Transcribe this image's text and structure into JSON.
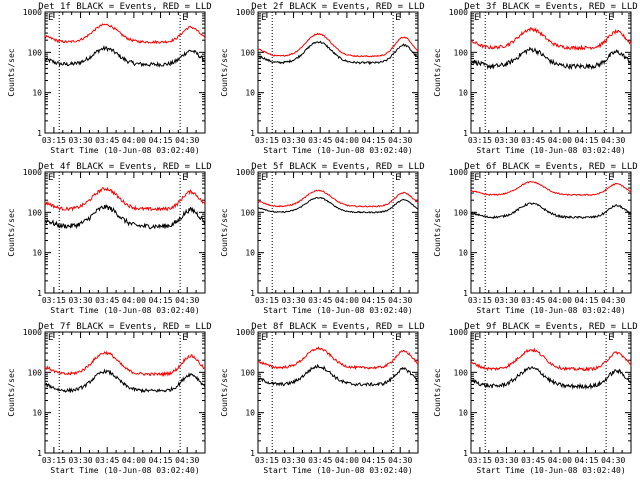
{
  "chart_data": [
    {
      "type": "line",
      "title": "Det 1f BLACK = Events, RED = LLD",
      "xlabel": "Start Time (10-Jun-08 03:02:40)",
      "ylabel": "Counts/sec",
      "yscale": "log",
      "ylim": [
        1,
        1000
      ],
      "xtick_labels": [
        "03:15",
        "03:30",
        "03:45",
        "04:00",
        "04:15",
        "04:30"
      ],
      "ytick_labels": [
        "1",
        "10",
        "100",
        "1000"
      ],
      "series": [
        {
          "color": "#000000",
          "base": 50,
          "amp": 2.5,
          "noise": 0.1
        },
        {
          "color": "#ff0000",
          "base": 180,
          "amp": 2.7,
          "noise": 0.06
        }
      ]
    },
    {
      "type": "line",
      "title": "Det 2f BLACK = Events, RED = LLD",
      "xlabel": "Start Time (10-Jun-08 03:02:40)",
      "ylabel": "Counts/sec",
      "yscale": "log",
      "ylim": [
        1,
        1000
      ],
      "xtick_labels": [
        "03:15",
        "03:30",
        "03:45",
        "04:00",
        "04:15",
        "04:30"
      ],
      "ytick_labels": [
        "1",
        "10",
        "100",
        "1000"
      ],
      "series": [
        {
          "color": "#000000",
          "base": 55,
          "amp": 3.3,
          "noise": 0.05
        },
        {
          "color": "#ff0000",
          "base": 80,
          "amp": 3.6,
          "noise": 0.03
        }
      ]
    },
    {
      "type": "line",
      "title": "Det 3f BLACK = Events, RED = LLD",
      "xlabel": "Start Time (10-Jun-08 03:02:40)",
      "ylabel": "Counts/sec",
      "yscale": "log",
      "ylim": [
        1,
        1000
      ],
      "xtick_labels": [
        "03:15",
        "03:30",
        "03:45",
        "04:00",
        "04:15",
        "04:30"
      ],
      "ytick_labels": [
        "1",
        "10",
        "100",
        "1000"
      ],
      "series": [
        {
          "color": "#000000",
          "base": 45,
          "amp": 2.6,
          "noise": 0.12
        },
        {
          "color": "#ff0000",
          "base": 130,
          "amp": 2.9,
          "noise": 0.08
        }
      ]
    },
    {
      "type": "line",
      "title": "Det 4f BLACK = Events, RED = LLD",
      "xlabel": "Start Time (10-Jun-08 03:02:40)",
      "ylabel": "Counts/sec",
      "yscale": "log",
      "ylim": [
        1,
        1000
      ],
      "xtick_labels": [
        "03:15",
        "03:30",
        "03:45",
        "04:00",
        "04:15",
        "04:30"
      ],
      "ytick_labels": [
        "1",
        "10",
        "100",
        "1000"
      ],
      "series": [
        {
          "color": "#000000",
          "base": 45,
          "amp": 3.0,
          "noise": 0.12
        },
        {
          "color": "#ff0000",
          "base": 120,
          "amp": 3.2,
          "noise": 0.08
        }
      ]
    },
    {
      "type": "line",
      "title": "Det 5f BLACK = Events, RED = LLD",
      "xlabel": "Start Time (10-Jun-08 03:02:40)",
      "ylabel": "Counts/sec",
      "yscale": "log",
      "ylim": [
        1,
        1000
      ],
      "xtick_labels": [
        "03:15",
        "03:30",
        "03:45",
        "04:00",
        "04:15",
        "04:30"
      ],
      "ytick_labels": [
        "1",
        "10",
        "100",
        "1000"
      ],
      "series": [
        {
          "color": "#000000",
          "base": 100,
          "amp": 2.3,
          "noise": 0.03
        },
        {
          "color": "#ff0000",
          "base": 140,
          "amp": 2.5,
          "noise": 0.03
        }
      ]
    },
    {
      "type": "line",
      "title": "Det 6f BLACK = Events, RED = LLD",
      "xlabel": "Start Time (10-Jun-08 03:02:40)",
      "ylabel": "Counts/sec",
      "yscale": "log",
      "ylim": [
        1,
        1000
      ],
      "xtick_labels": [
        "03:15",
        "03:30",
        "03:45",
        "04:00",
        "04:15",
        "04:30"
      ],
      "ytick_labels": [
        "1",
        "10",
        "100",
        "1000"
      ],
      "series": [
        {
          "color": "#000000",
          "base": 75,
          "amp": 2.2,
          "noise": 0.05
        },
        {
          "color": "#ff0000",
          "base": 270,
          "amp": 2.1,
          "noise": 0.03
        }
      ]
    },
    {
      "type": "line",
      "title": "Det 7f BLACK = Events, RED = LLD",
      "xlabel": "Start Time (10-Jun-08 03:02:40)",
      "ylabel": "Counts/sec",
      "yscale": "log",
      "ylim": [
        1,
        1000
      ],
      "xtick_labels": [
        "03:15",
        "03:30",
        "03:45",
        "04:00",
        "04:15",
        "04:30"
      ],
      "ytick_labels": [
        "1",
        "10",
        "100",
        "1000"
      ],
      "series": [
        {
          "color": "#000000",
          "base": 35,
          "amp": 3.0,
          "noise": 0.08
        },
        {
          "color": "#ff0000",
          "base": 90,
          "amp": 3.4,
          "noise": 0.07
        }
      ]
    },
    {
      "type": "line",
      "title": "Det 8f BLACK = Events, RED = LLD",
      "xlabel": "Start Time (10-Jun-08 03:02:40)",
      "ylabel": "Counts/sec",
      "yscale": "log",
      "ylim": [
        1,
        1000
      ],
      "xtick_labels": [
        "03:15",
        "03:30",
        "03:45",
        "04:00",
        "04:15",
        "04:30"
      ],
      "ytick_labels": [
        "1",
        "10",
        "100",
        "1000"
      ],
      "series": [
        {
          "color": "#000000",
          "base": 50,
          "amp": 2.8,
          "noise": 0.08
        },
        {
          "color": "#ff0000",
          "base": 130,
          "amp": 3.0,
          "noise": 0.06
        }
      ]
    },
    {
      "type": "line",
      "title": "Det 9f BLACK = Events, RED = LLD",
      "xlabel": "Start Time (10-Jun-08 03:02:40)",
      "ylabel": "Counts/sec",
      "yscale": "log",
      "ylim": [
        1,
        1000
      ],
      "xtick_labels": [
        "03:15",
        "03:30",
        "03:45",
        "04:00",
        "04:15",
        "04:30"
      ],
      "ytick_labels": [
        "1",
        "10",
        "100",
        "1000"
      ],
      "series": [
        {
          "color": "#000000",
          "base": 45,
          "amp": 2.8,
          "noise": 0.1
        },
        {
          "color": "#ff0000",
          "base": 120,
          "amp": 3.0,
          "noise": 0.07
        }
      ]
    }
  ],
  "markers": {
    "left_label": "E",
    "right_label": "E"
  }
}
